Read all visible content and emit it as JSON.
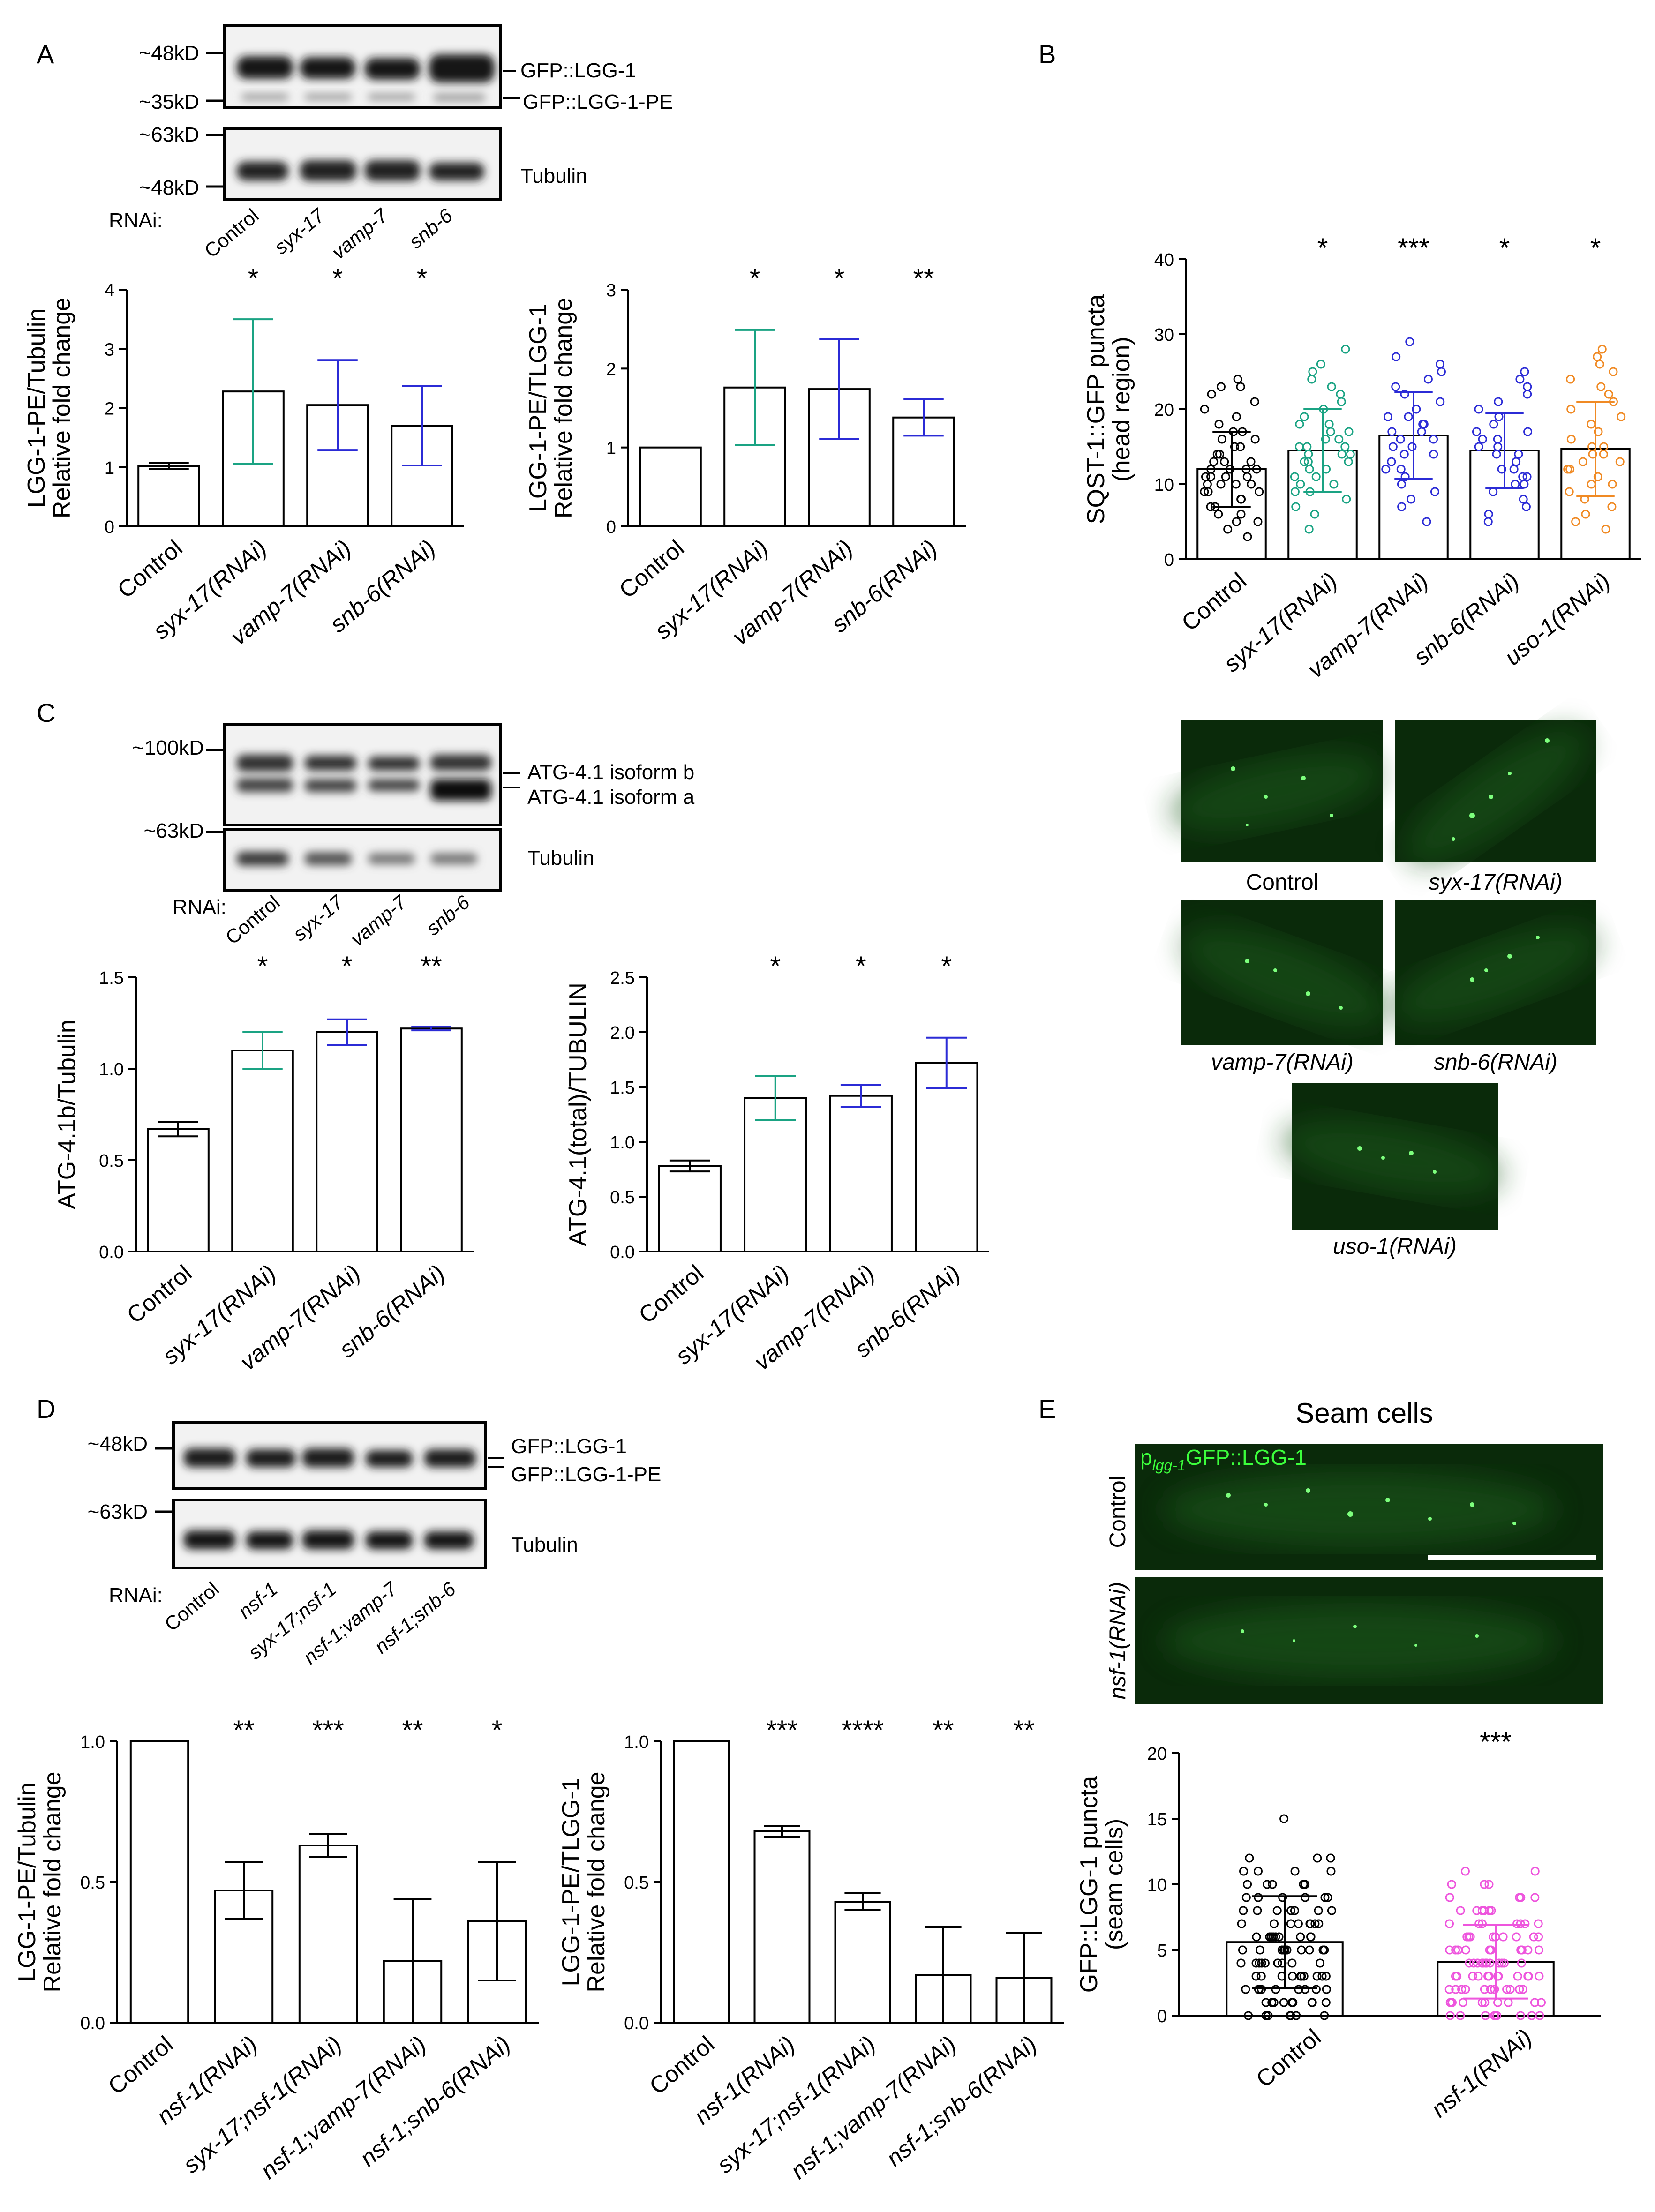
{
  "panel_letters": [
    "A",
    "B",
    "C",
    "D",
    "E"
  ],
  "blots": {
    "A": {
      "rnai_label": "RNAi:",
      "lanes": [
        "Control",
        "syx-17",
        "vamp-7",
        "snb-6"
      ],
      "top_markers": [
        "~48kD",
        "~35kD"
      ],
      "bottom_markers": [
        "~63kD",
        "~48kD"
      ],
      "top_bands": [
        "GFP::LGG-1",
        "GFP::LGG-1-PE"
      ],
      "bottom_band": "Tubulin"
    },
    "C": {
      "rnai_label": "RNAi:",
      "lanes": [
        "Control",
        "syx-17",
        "vamp-7",
        "snb-6"
      ],
      "top_markers": [
        "~100kD"
      ],
      "bottom_markers": [
        "~63kD"
      ],
      "top_bands": [
        "ATG-4.1 isoform b",
        "ATG-4.1 isoform a"
      ],
      "bottom_band": "Tubulin"
    },
    "D": {
      "rnai_label": "RNAi:",
      "lanes": [
        "Control",
        "nsf-1",
        "syx-17;nsf-1",
        "nsf-1;vamp-7",
        "nsf-1;snb-6"
      ],
      "top_markers": [
        "~48kD"
      ],
      "bottom_markers": [
        "~63kD"
      ],
      "top_bands": [
        "GFP::LGG-1",
        "GFP::LGG-1-PE"
      ],
      "bottom_band": "Tubulin"
    }
  },
  "micrographs": {
    "C_labels": [
      "Control",
      "syx-17(RNAi)",
      "vamp-7(RNAi)",
      "snb-6(RNAi)",
      "uso-1(RNAi)"
    ],
    "E": {
      "title": "Seam cells",
      "reporter_prefix": "p",
      "reporter_sub": "lgg-1",
      "reporter_suffix": "GFP::LGG-1",
      "row_labels": [
        "Control",
        "nsf-1(RNAi)"
      ]
    }
  },
  "colors": {
    "control": "#000000",
    "syx17": "#1aa383",
    "vamp7": "#2b2bd6",
    "snb6": "#2b2bd6",
    "uso1": "#f08a24",
    "nsf1": "#ee55dd",
    "micrograph_bg": "#0a2a0a",
    "puncta": "#7dff7d"
  },
  "chart_data": [
    {
      "id": "A1",
      "type": "bar",
      "ylabel": [
        "LGG-1-PE/Tubulin",
        "Relative fold change"
      ],
      "categories": [
        "Control",
        "syx-17(RNAi)",
        "vamp-7(RNAi)",
        "snb-6(RNAi)"
      ],
      "values": [
        1.02,
        2.28,
        2.05,
        1.7
      ],
      "errors": [
        0.05,
        1.22,
        0.76,
        0.67
      ],
      "error_colors": [
        "#000000",
        "#1aa383",
        "#2b2bd6",
        "#2b2bd6"
      ],
      "significance": [
        "",
        "*",
        "*",
        "*"
      ],
      "ylim": [
        0,
        4
      ],
      "yticks": [
        0,
        1,
        2,
        3,
        4
      ]
    },
    {
      "id": "A2",
      "type": "bar",
      "ylabel": [
        "LGG-1-PE/TLGG-1",
        "Relative fold change"
      ],
      "categories": [
        "Control",
        "syx-17(RNAi)",
        "vamp-7(RNAi)",
        "snb-6(RNAi)"
      ],
      "values": [
        1.0,
        1.76,
        1.74,
        1.38
      ],
      "errors": [
        0,
        0.73,
        0.63,
        0.23
      ],
      "error_colors": [
        "#000000",
        "#1aa383",
        "#2b2bd6",
        "#2b2bd6"
      ],
      "significance": [
        "",
        "*",
        "*",
        "**"
      ],
      "ylim": [
        0,
        3
      ],
      "yticks": [
        0,
        1,
        2,
        3
      ]
    },
    {
      "id": "B",
      "type": "bar",
      "ylabel": [
        "SQST-1::GFP puncta",
        "(head region)"
      ],
      "categories": [
        "Control",
        "syx-17(RNAi)",
        "vamp-7(RNAi)",
        "snb-6(RNAi)",
        "uso-1(RNAi)"
      ],
      "values": [
        12,
        14.5,
        16.5,
        14.5,
        14.7
      ],
      "errors": [
        5,
        5.5,
        5.8,
        5,
        6.3
      ],
      "series_colors": [
        "#000000",
        "#1aa383",
        "#2b2bd6",
        "#2b2bd6",
        "#f08a24"
      ],
      "points": [
        [
          3,
          4,
          5,
          5,
          6,
          6,
          7,
          7,
          8,
          8,
          8,
          9,
          9,
          9,
          10,
          10,
          10,
          10,
          11,
          11,
          11,
          11,
          12,
          12,
          12,
          12,
          13,
          13,
          13,
          14,
          14,
          15,
          15,
          16,
          16,
          17,
          17,
          18,
          19,
          20,
          21,
          22,
          23,
          23,
          24
        ],
        [
          4,
          6,
          7,
          8,
          9,
          9,
          10,
          10,
          11,
          11,
          12,
          12,
          13,
          13,
          13,
          14,
          14,
          14,
          15,
          15,
          15,
          16,
          16,
          17,
          17,
          18,
          18,
          19,
          20,
          21,
          22,
          23,
          24,
          25,
          26,
          28
        ],
        [
          5,
          7,
          8,
          9,
          10,
          11,
          12,
          12,
          13,
          14,
          14,
          15,
          15,
          16,
          16,
          17,
          17,
          18,
          18,
          19,
          19,
          20,
          21,
          22,
          23,
          24,
          25,
          26,
          27,
          29
        ],
        [
          5,
          6,
          7,
          8,
          9,
          10,
          10,
          11,
          11,
          12,
          12,
          13,
          13,
          14,
          14,
          15,
          15,
          16,
          16,
          17,
          17,
          18,
          19,
          20,
          21,
          22,
          23,
          24,
          25
        ],
        [
          4,
          5,
          6,
          7,
          8,
          9,
          10,
          10,
          11,
          12,
          12,
          13,
          13,
          14,
          14,
          15,
          15,
          16,
          17,
          18,
          19,
          20,
          21,
          22,
          23,
          24,
          25,
          26,
          27,
          28
        ]
      ],
      "significance": [
        "",
        "*",
        "***",
        "*",
        "*"
      ],
      "ylim": [
        0,
        40
      ],
      "yticks": [
        0,
        10,
        20,
        30,
        40
      ]
    },
    {
      "id": "C1",
      "type": "bar",
      "ylabel": [
        "ATG-4.1b/Tubulin"
      ],
      "categories": [
        "Control",
        "syx-17(RNAi)",
        "vamp-7(RNAi)",
        "snb-6(RNAi)"
      ],
      "values": [
        0.67,
        1.1,
        1.2,
        1.22
      ],
      "errors": [
        0.04,
        0.1,
        0.07,
        0.01
      ],
      "error_colors": [
        "#000000",
        "#1aa383",
        "#2b2bd6",
        "#2b2bd6"
      ],
      "significance": [
        "",
        "*",
        "*",
        "**"
      ],
      "ylim": [
        0,
        1.5
      ],
      "yticks": [
        "0.0",
        "0.5",
        "1.0",
        "1.5"
      ]
    },
    {
      "id": "C2",
      "type": "bar",
      "ylabel": [
        "ATG-4.1(total)/TUBULIN"
      ],
      "categories": [
        "Control",
        "syx-17(RNAi)",
        "vamp-7(RNAi)",
        "snb-6(RNAi)"
      ],
      "values": [
        0.78,
        1.4,
        1.42,
        1.72
      ],
      "errors": [
        0.05,
        0.2,
        0.1,
        0.23
      ],
      "error_colors": [
        "#000000",
        "#1aa383",
        "#2b2bd6",
        "#2b2bd6"
      ],
      "significance": [
        "",
        "*",
        "*",
        "*"
      ],
      "ylim": [
        0,
        2.5
      ],
      "yticks": [
        "0.0",
        "0.5",
        "1.0",
        "1.5",
        "2.0",
        "2.5"
      ]
    },
    {
      "id": "D1",
      "type": "bar",
      "ylabel": [
        "LGG-1-PE/Tubulin",
        "Relative fold change"
      ],
      "categories": [
        "Control",
        "nsf-1(RNAi)",
        "syx-17;nsf-1(RNAi)",
        "nsf-1;vamp-7(RNAi)",
        "nsf-1;snb-6(RNAi)"
      ],
      "values": [
        1.0,
        0.47,
        0.63,
        0.22,
        0.36
      ],
      "errors": [
        0,
        0.1,
        0.04,
        0.22,
        0.21
      ],
      "error_colors": [
        "#000000",
        "#000000",
        "#000000",
        "#000000",
        "#000000"
      ],
      "significance": [
        "",
        "**",
        "***",
        "**",
        "*"
      ],
      "ylim": [
        0,
        1.0
      ],
      "yticks": [
        "0.0",
        "0.5",
        "1.0"
      ]
    },
    {
      "id": "D2",
      "type": "bar",
      "ylabel": [
        "LGG-1-PE/TLGG-1",
        "Relative fold change"
      ],
      "categories": [
        "Control",
        "nsf-1(RNAi)",
        "syx-17;nsf-1(RNAi)",
        "nsf-1;vamp-7(RNAi)",
        "nsf-1;snb-6(RNAi)"
      ],
      "values": [
        1.0,
        0.68,
        0.43,
        0.17,
        0.16
      ],
      "errors": [
        0,
        0.02,
        0.03,
        0.17,
        0.16
      ],
      "error_colors": [
        "#000000",
        "#000000",
        "#000000",
        "#000000",
        "#000000"
      ],
      "significance": [
        "",
        "***",
        "****",
        "**",
        "**"
      ],
      "ylim": [
        0,
        1.0
      ],
      "yticks": [
        "0.0",
        "0.5",
        "1.0"
      ]
    },
    {
      "id": "E",
      "type": "bar",
      "ylabel": [
        "GFP::LGG-1 puncta",
        "(seam cells)"
      ],
      "categories": [
        "Control",
        "nsf-1(RNAi)"
      ],
      "values": [
        5.6,
        4.1
      ],
      "errors": [
        3.5,
        2.8
      ],
      "series_colors": [
        "#000000",
        "#ee55dd"
      ],
      "points": [
        [
          0,
          0,
          0,
          0,
          0,
          0,
          0,
          1,
          1,
          1,
          1,
          1,
          1,
          1,
          1,
          1,
          2,
          2,
          2,
          2,
          2,
          2,
          2,
          2,
          2,
          3,
          3,
          3,
          3,
          3,
          3,
          3,
          3,
          3,
          3,
          4,
          4,
          4,
          4,
          4,
          4,
          4,
          4,
          4,
          4,
          5,
          5,
          5,
          5,
          5,
          5,
          5,
          5,
          5,
          5,
          6,
          6,
          6,
          6,
          6,
          6,
          6,
          6,
          6,
          7,
          7,
          7,
          7,
          7,
          7,
          7,
          7,
          8,
          8,
          8,
          8,
          8,
          8,
          8,
          9,
          9,
          9,
          9,
          9,
          9,
          10,
          10,
          10,
          10,
          10,
          11,
          11,
          11,
          11,
          12,
          12,
          12,
          15
        ],
        [
          0,
          0,
          0,
          0,
          0,
          0,
          0,
          0,
          0,
          1,
          1,
          1,
          1,
          1,
          1,
          1,
          1,
          1,
          1,
          2,
          2,
          2,
          2,
          2,
          2,
          2,
          2,
          2,
          2,
          2,
          3,
          3,
          3,
          3,
          3,
          3,
          3,
          3,
          3,
          3,
          3,
          3,
          4,
          4,
          4,
          4,
          4,
          4,
          4,
          4,
          4,
          4,
          4,
          4,
          5,
          5,
          5,
          5,
          5,
          5,
          5,
          5,
          5,
          5,
          6,
          6,
          6,
          6,
          6,
          6,
          6,
          6,
          6,
          7,
          7,
          7,
          7,
          7,
          7,
          7,
          8,
          8,
          8,
          8,
          8,
          8,
          9,
          9,
          9,
          9,
          10,
          10,
          10,
          11,
          11
        ]
      ],
      "significance": [
        "",
        "***"
      ],
      "ylim": [
        0,
        20
      ],
      "yticks": [
        0,
        5,
        10,
        15,
        20
      ]
    }
  ]
}
